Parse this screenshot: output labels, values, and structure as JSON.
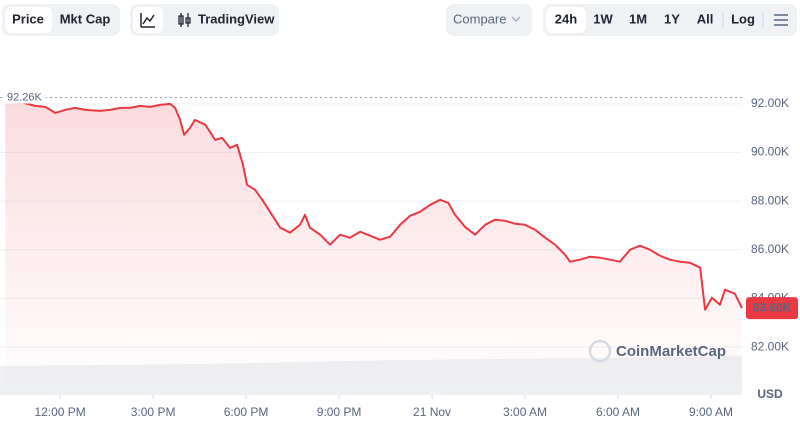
{
  "ui": {
    "tabs": [
      "Price",
      "Mkt Cap"
    ],
    "tools": [
      "TradingView"
    ],
    "compare": "Compare",
    "ranges": [
      "24h",
      "1W",
      "1M",
      "1Y",
      "All"
    ],
    "log": "Log",
    "watermark": "CoinMarketCap"
  },
  "chart_data": {
    "type": "line",
    "unit": "USD",
    "color": "#ea3943",
    "high": {
      "value": 92260,
      "label": "92.26K"
    },
    "current": {
      "value": 83600,
      "label": "83.60K"
    },
    "xlim": [
      10.06,
      34.0
    ],
    "xticks": [
      {
        "value": 12,
        "label": "12:00 PM"
      },
      {
        "value": 15,
        "label": "3:00 PM"
      },
      {
        "value": 18,
        "label": "6:00 PM"
      },
      {
        "value": 21,
        "label": "9:00 PM"
      },
      {
        "value": 24,
        "label": "21 Nov"
      },
      {
        "value": 27,
        "label": "3:00 AM"
      },
      {
        "value": 30,
        "label": "6:00 AM"
      },
      {
        "value": 33,
        "label": "9:00 AM"
      }
    ],
    "ylim": [
      80030,
      94010
    ],
    "yticks": [
      {
        "value": 82000,
        "label": "82.00K"
      },
      {
        "value": 84000,
        "label": "84.00K"
      },
      {
        "value": 86000,
        "label": "86.00K"
      },
      {
        "value": 88000,
        "label": "88.00K"
      },
      {
        "value": 90000,
        "label": "90.00K"
      },
      {
        "value": 92000,
        "label": "92.00K"
      }
    ],
    "grid": true,
    "series": [
      {
        "name": "Price",
        "color": "#ea3943",
        "x": [
          10.23,
          10.71,
          11.19,
          11.52,
          11.84,
          12.16,
          12.48,
          12.81,
          13.29,
          13.61,
          13.94,
          14.26,
          14.58,
          14.9,
          15.23,
          15.55,
          15.71,
          15.87,
          16.0,
          16.19,
          16.35,
          16.68,
          16.84,
          17.0,
          17.23,
          17.48,
          17.71,
          17.9,
          18.03,
          18.29,
          18.52,
          18.77,
          19.1,
          19.42,
          19.74,
          19.9,
          20.06,
          20.39,
          20.71,
          21.03,
          21.35,
          21.68,
          22.0,
          22.32,
          22.65,
          22.97,
          23.29,
          23.61,
          23.94,
          24.26,
          24.52,
          24.74,
          25.06,
          25.39,
          25.71,
          26.03,
          26.35,
          26.68,
          27.0,
          27.32,
          27.65,
          27.97,
          28.29,
          28.45,
          28.77,
          29.1,
          29.42,
          29.74,
          30.06,
          30.39,
          30.71,
          31.03,
          31.35,
          31.68,
          32.0,
          32.32,
          32.65,
          32.81,
          33.03,
          33.29,
          33.45,
          33.77,
          34.0
        ],
        "values": [
          92164,
          92082,
          91918,
          91877,
          91630,
          91754,
          91836,
          91754,
          91713,
          91754,
          91836,
          91836,
          91918,
          91877,
          91959,
          92000,
          91836,
          91343,
          90727,
          91014,
          91343,
          91138,
          90850,
          90521,
          90603,
          90192,
          90316,
          89494,
          88673,
          88468,
          88057,
          87564,
          86907,
          86702,
          87030,
          87441,
          86907,
          86620,
          86209,
          86620,
          86496,
          86743,
          86579,
          86414,
          86538,
          87030,
          87400,
          87564,
          87852,
          88057,
          87934,
          87441,
          86948,
          86620,
          87030,
          87236,
          87195,
          87072,
          87030,
          86825,
          86496,
          86209,
          85798,
          85511,
          85593,
          85716,
          85675,
          85593,
          85511,
          86004,
          86168,
          86004,
          85757,
          85593,
          85511,
          85470,
          85264,
          83539,
          84032,
          83744,
          84361,
          84197,
          83600
        ]
      }
    ]
  }
}
